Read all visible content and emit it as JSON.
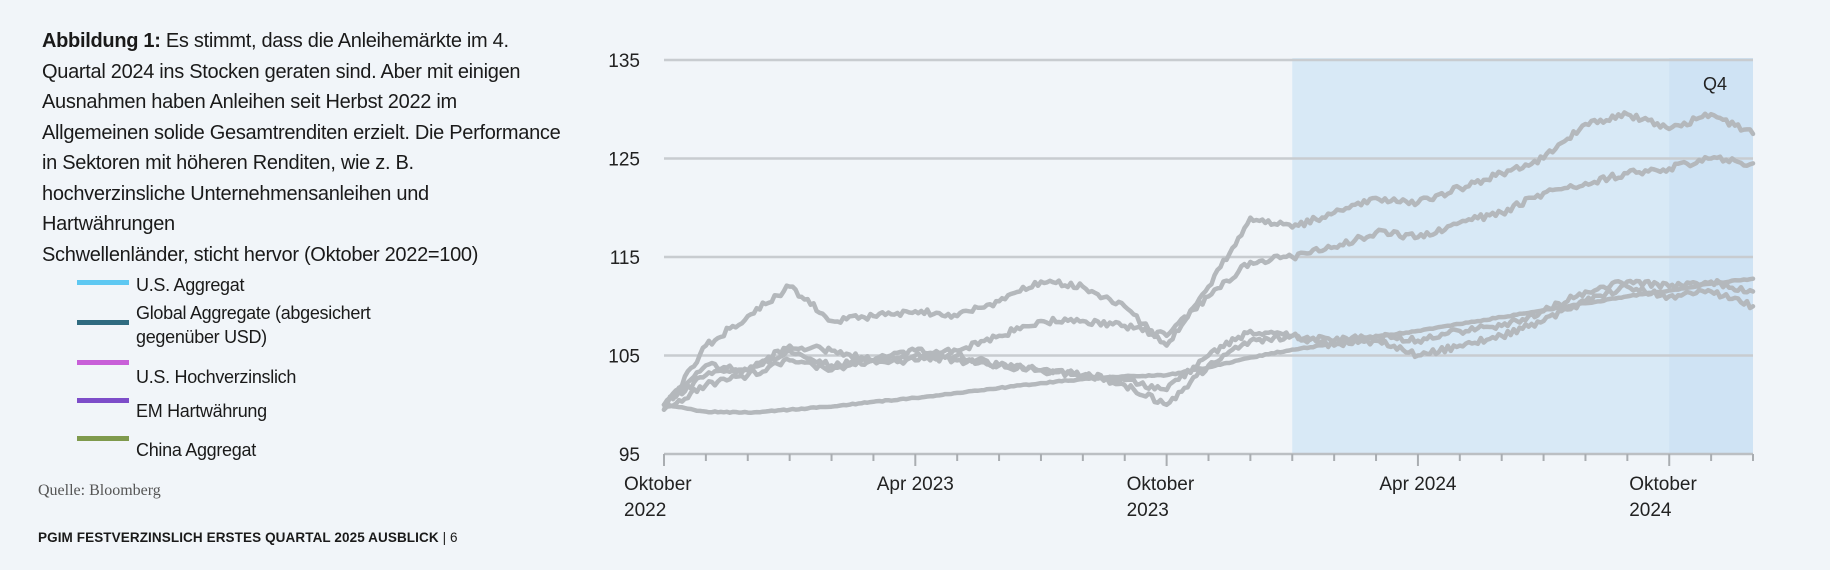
{
  "caption": {
    "lead": "Abbildung 1:",
    "text": "Es stimmt, dass die Anleihemärkte im 4. Quartal 2024 ins Stocken geraten sind. Aber mit einigen Ausnahmen haben Anleihen seit Herbst 2022 im Allgemeinen solide Gesamtrenditen erzielt. Die Performance in Sektoren mit höheren Renditen, wie z. B. hochverzinsliche Unternehmensanleihen und Hartwährungen",
    "subtext": "Schwellenländer, sticht hervor (Oktober 2022=100)"
  },
  "source": "Quelle: Bloomberg",
  "footer": {
    "title": "PGIM FESTVERZINSLICH ERSTES QUARTAL 2025 AUSBLICK",
    "page": "| 6"
  },
  "colors": {
    "line_rendered": "#b4b8bc",
    "gridline": "#c8ccd0",
    "highlight": "#d8e9f6",
    "q4_highlight": "#cfe3f4"
  },
  "chart_data": {
    "type": "line",
    "title": "",
    "xlabel": "",
    "ylabel": "",
    "ylim": [
      95,
      135
    ],
    "y_ticks": [
      95,
      105,
      115,
      125,
      135
    ],
    "x_range": [
      "2022-10",
      "2024-12"
    ],
    "x_tick_labels": [
      {
        "date": "2022-10",
        "lines": [
          "Oktober",
          "2022"
        ]
      },
      {
        "date": "2023-04",
        "lines": [
          "Apr 2023"
        ]
      },
      {
        "date": "2023-10",
        "lines": [
          "Oktober",
          "2023"
        ]
      },
      {
        "date": "2024-04",
        "lines": [
          "Apr 2024"
        ]
      },
      {
        "date": "2024-10",
        "lines": [
          "Oktober",
          "2024"
        ]
      }
    ],
    "grid": "horizontal",
    "shaded_regions": [
      {
        "from": "2024-01",
        "to": "2024-12"
      },
      {
        "from": "2024-10",
        "to": "2024-12",
        "label": "Q4"
      }
    ],
    "series": [
      {
        "name": "U.S. Aggregat",
        "color": "#5ec8f2",
        "x": [
          "2022-10",
          "2022-11",
          "2022-12",
          "2023-01",
          "2023-02",
          "2023-03",
          "2023-04",
          "2023-05",
          "2023-06",
          "2023-07",
          "2023-08",
          "2023-09",
          "2023-10",
          "2023-11",
          "2023-12",
          "2024-01",
          "2024-02",
          "2024-03",
          "2024-04",
          "2024-05",
          "2024-06",
          "2024-07",
          "2024-08",
          "2024-09",
          "2024-10",
          "2024-11",
          "2024-12"
        ],
        "values": [
          100,
          104,
          103.5,
          105.5,
          104,
          104.5,
          105,
          104.5,
          104,
          103.5,
          103,
          102,
          100,
          104,
          106.5,
          107,
          106,
          106.5,
          105,
          106,
          107,
          108.5,
          110.5,
          112,
          111,
          111.5,
          110
        ]
      },
      {
        "name": "Global Aggregate (abgesichert gegenüber USD)",
        "color": "#2f6b80",
        "x": [
          "2022-10",
          "2022-11",
          "2022-12",
          "2023-01",
          "2023-02",
          "2023-03",
          "2023-04",
          "2023-05",
          "2023-06",
          "2023-07",
          "2023-08",
          "2023-09",
          "2023-10",
          "2023-11",
          "2023-12",
          "2024-01",
          "2024-02",
          "2024-03",
          "2024-04",
          "2024-05",
          "2024-06",
          "2024-07",
          "2024-08",
          "2024-09",
          "2024-10",
          "2024-11",
          "2024-12"
        ],
        "values": [
          99.5,
          102,
          103,
          104.5,
          103.5,
          104.5,
          104.5,
          105,
          104,
          103.5,
          103,
          102.5,
          101.5,
          105,
          107.5,
          107,
          106.5,
          107,
          106.5,
          107.5,
          108,
          109.5,
          111.5,
          112.5,
          112,
          112.5,
          111.5
        ]
      },
      {
        "name": "U.S. Hochverzinslich",
        "color": "#c85fd8",
        "x": [
          "2022-10",
          "2022-11",
          "2022-12",
          "2023-01",
          "2023-02",
          "2023-03",
          "2023-04",
          "2023-05",
          "2023-06",
          "2023-07",
          "2023-08",
          "2023-09",
          "2023-10",
          "2023-11",
          "2023-12",
          "2024-01",
          "2024-02",
          "2024-03",
          "2024-04",
          "2024-05",
          "2024-06",
          "2024-07",
          "2024-08",
          "2024-09",
          "2024-10",
          "2024-11",
          "2024-12"
        ],
        "values": [
          100,
          103,
          103.5,
          106,
          105.5,
          104.5,
          105.5,
          105.5,
          107,
          108.5,
          108.5,
          108,
          107,
          111,
          114.5,
          115,
          116,
          117.5,
          117,
          118.5,
          119.5,
          121.5,
          122.5,
          123.5,
          124,
          125,
          124.5
        ]
      },
      {
        "name": "EM Hartwährung",
        "color": "#7d4dc9",
        "x": [
          "2022-10",
          "2022-11",
          "2022-12",
          "2023-01",
          "2023-02",
          "2023-03",
          "2023-04",
          "2023-05",
          "2023-06",
          "2023-07",
          "2023-08",
          "2023-09",
          "2023-10",
          "2023-11",
          "2023-12",
          "2024-01",
          "2024-02",
          "2024-03",
          "2024-04",
          "2024-05",
          "2024-06",
          "2024-07",
          "2024-08",
          "2024-09",
          "2024-10",
          "2024-11",
          "2024-12"
        ],
        "values": [
          99.5,
          106,
          109,
          112,
          108.5,
          109,
          109.5,
          109,
          110.5,
          112.5,
          112,
          110,
          106,
          112,
          119,
          118,
          119.5,
          121,
          120.5,
          122,
          123.5,
          125,
          128.5,
          129.5,
          128,
          129.5,
          127.5
        ]
      },
      {
        "name": "China Aggregat",
        "color": "#7f9a4d",
        "x": [
          "2022-10",
          "2022-11",
          "2022-12",
          "2023-01",
          "2023-02",
          "2023-03",
          "2023-04",
          "2023-05",
          "2023-06",
          "2023-07",
          "2023-08",
          "2023-09",
          "2023-10",
          "2023-11",
          "2023-12",
          "2024-01",
          "2024-02",
          "2024-03",
          "2024-04",
          "2024-05",
          "2024-06",
          "2024-07",
          "2024-08",
          "2024-09",
          "2024-10",
          "2024-11",
          "2024-12"
        ],
        "values": [
          100,
          99.3,
          99.2,
          99.5,
          99.8,
          100.3,
          100.7,
          101.2,
          101.7,
          102.2,
          102.6,
          102.9,
          103,
          103.8,
          104.8,
          105.6,
          106.2,
          106.9,
          107.5,
          108.2,
          108.9,
          109.6,
          110.3,
          111,
          111.6,
          112.3,
          112.8
        ]
      }
    ]
  }
}
